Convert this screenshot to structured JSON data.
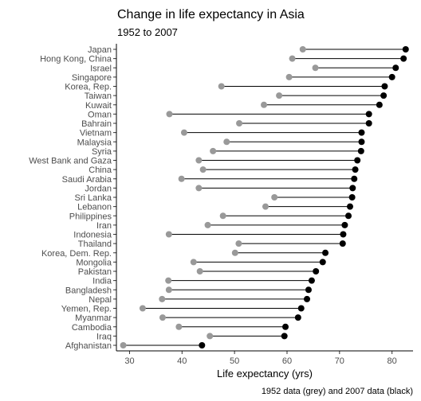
{
  "chart_data": {
    "type": "dumbbell",
    "title": "Change in life expectancy in Asia",
    "subtitle": "1952 to 2007",
    "xlabel": "Life expectancy (yrs)",
    "ylabel": "",
    "caption": "1952 data (grey) and 2007 data (black)",
    "xlim": [
      27.5,
      84.0
    ],
    "xticks": [
      30,
      40,
      50,
      60,
      70,
      80
    ],
    "grid": false,
    "colors": {
      "y1952": "#999999",
      "y2007": "#000000",
      "segment": "#000000"
    },
    "series": [
      {
        "name": "1952",
        "color": "grey"
      },
      {
        "name": "2007",
        "color": "black"
      }
    ],
    "categories": [
      "Japan",
      "Hong Kong, China",
      "Israel",
      "Singapore",
      "Korea, Rep.",
      "Taiwan",
      "Kuwait",
      "Oman",
      "Bahrain",
      "Vietnam",
      "Malaysia",
      "Syria",
      "West Bank and Gaza",
      "China",
      "Saudi Arabia",
      "Jordan",
      "Sri Lanka",
      "Lebanon",
      "Philippines",
      "Iran",
      "Indonesia",
      "Thailand",
      "Korea, Dem. Rep.",
      "Mongolia",
      "Pakistan",
      "India",
      "Bangladesh",
      "Nepal",
      "Yemen, Rep.",
      "Myanmar",
      "Cambodia",
      "Iraq",
      "Afghanistan"
    ],
    "y1952": [
      63.0,
      61.0,
      65.4,
      60.4,
      47.5,
      58.5,
      55.6,
      37.6,
      50.9,
      40.4,
      48.5,
      45.9,
      43.2,
      44.0,
      39.9,
      43.2,
      57.6,
      55.9,
      47.8,
      44.9,
      37.5,
      50.8,
      50.1,
      42.2,
      43.4,
      37.4,
      37.5,
      36.2,
      32.5,
      36.3,
      39.4,
      45.3,
      28.8
    ],
    "y2007": [
      82.6,
      82.2,
      80.7,
      80.0,
      78.6,
      78.4,
      77.6,
      75.6,
      75.6,
      74.2,
      74.2,
      74.1,
      73.4,
      73.0,
      72.8,
      72.5,
      72.4,
      72.0,
      71.7,
      71.0,
      70.7,
      70.6,
      67.3,
      66.8,
      65.5,
      64.7,
      64.1,
      63.8,
      62.7,
      62.1,
      59.7,
      59.5,
      43.8
    ]
  }
}
